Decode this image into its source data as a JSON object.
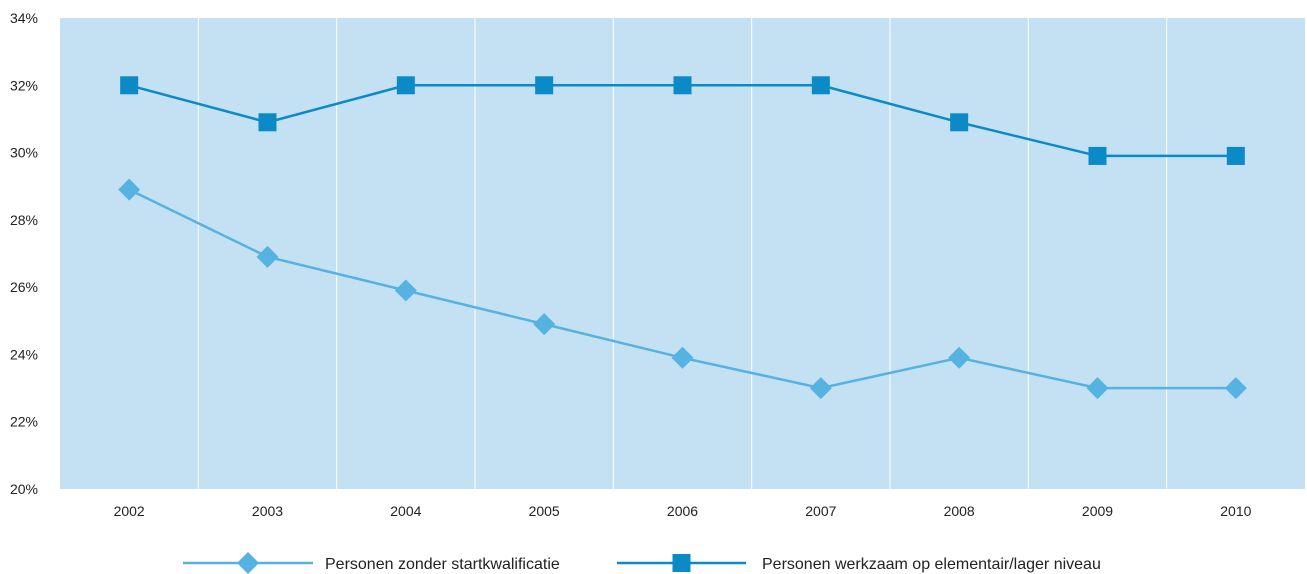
{
  "chart_data": {
    "type": "line",
    "title": "",
    "xlabel": "",
    "ylabel": "",
    "categories": [
      "2002",
      "2003",
      "2004",
      "2005",
      "2006",
      "2007",
      "2008",
      "2009",
      "2010"
    ],
    "ylim": [
      20,
      34
    ],
    "y_ticks": [
      20,
      22,
      24,
      26,
      28,
      30,
      32,
      34
    ],
    "y_tick_labels": [
      "20%",
      "22%",
      "24%",
      "26%",
      "28%",
      "30%",
      "32%",
      "34%"
    ],
    "grid": "vertical",
    "legend_position": "bottom",
    "series": [
      {
        "name": "Personen zonder startkwalificatie",
        "marker": "diamond",
        "color": "#56b2e1",
        "values": [
          28.9,
          26.9,
          25.9,
          24.9,
          23.9,
          23.0,
          23.9,
          23.0,
          23.0
        ]
      },
      {
        "name": "Personen werkzaam op elementair/lager niveau",
        "marker": "square",
        "color": "#0b8ac6",
        "values": [
          32.0,
          30.9,
          32.0,
          32.0,
          32.0,
          32.0,
          30.9,
          29.9,
          29.9
        ]
      }
    ]
  },
  "colors": {
    "plot_background": "#c3e1f3",
    "gridline": "#ffffff"
  }
}
